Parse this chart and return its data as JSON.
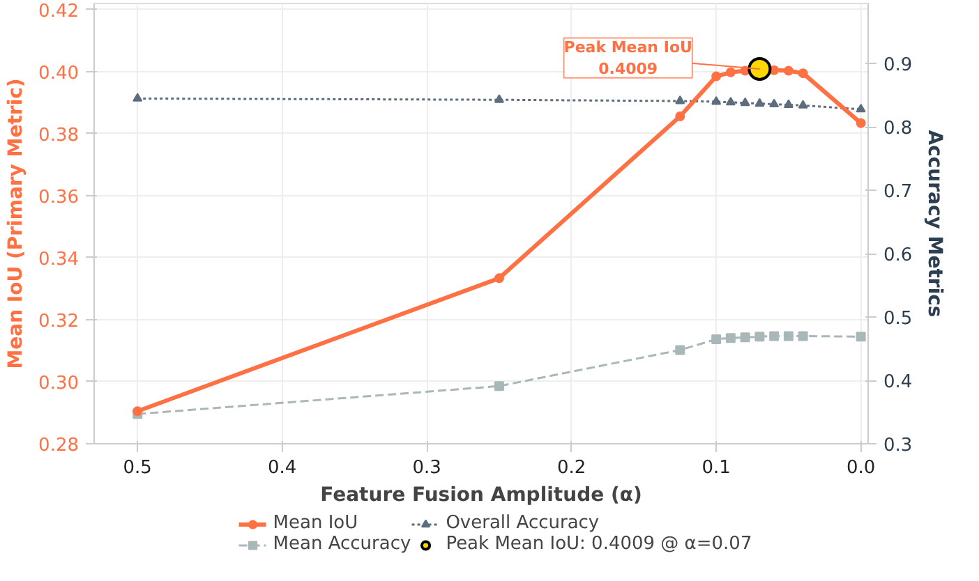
{
  "chart_data": {
    "type": "line",
    "xlabel": "Feature Fusion Amplitude (α)",
    "ylabel": "Mean IoU (Primary Metric)",
    "y2label": "Accuracy Metrics",
    "xlim": [
      0.53,
      -0.005
    ],
    "xticks": [
      0.5,
      0.4,
      0.3,
      0.2,
      0.1,
      {
        "value": 0,
        "label": "0.0"
      }
    ],
    "ylim": [
      0.28,
      0.422
    ],
    "yticks": [
      0.28,
      {
        "value": 0.3,
        "label": "0.30"
      },
      0.32,
      0.34,
      0.36,
      0.38,
      {
        "value": 0.4,
        "label": "0.40"
      },
      0.42
    ],
    "y2lim": [
      0.3,
      0.995
    ],
    "y2ticks": [
      0.3,
      0.4,
      0.5,
      0.6,
      0.7,
      0.8,
      0.9
    ],
    "x": [
      0.5,
      0.25,
      0.125,
      0.1,
      0.09,
      0.08,
      0.07,
      0.06,
      0.05,
      0.04,
      0
    ],
    "grid": true,
    "legend": "bottom",
    "series": [
      {
        "name": "Mean IoU",
        "color": "#ff7043",
        "marker": "circle",
        "line_style": "solid",
        "values": [
          0.2905,
          0.3334,
          0.3856,
          0.3985,
          0.3998,
          0.4003,
          0.4009,
          0.4005,
          0.4003,
          0.3995,
          0.3834
        ]
      },
      {
        "name": "Mean Accuracy",
        "axis": "y2",
        "color": "#aab7b8",
        "marker": "square",
        "line_style": "dashed",
        "values": [
          0.347,
          0.391,
          0.448,
          0.465,
          0.467,
          0.468,
          0.469,
          0.47,
          0.47,
          0.47,
          0.469
        ]
      },
      {
        "name": "Overall Accuracy",
        "axis": "y2",
        "color": "#5d6d7e",
        "marker": "triangle",
        "line_style": "dotted",
        "values": [
          0.845,
          0.843,
          0.841,
          0.84,
          0.839,
          0.838,
          0.837,
          0.836,
          0.835,
          0.834,
          0.828
        ]
      },
      {
        "name": "Peak Mean IoU: 0.4009 @ α=0.07",
        "type": "scatter",
        "color": "#ffd700",
        "marker": "circle",
        "x": [
          0.07
        ],
        "values": [
          0.4009
        ]
      }
    ],
    "annotations": [
      {
        "text": "Peak Mean IoU\n0.4009",
        "x": 0.07,
        "y": 0.4009
      }
    ]
  }
}
